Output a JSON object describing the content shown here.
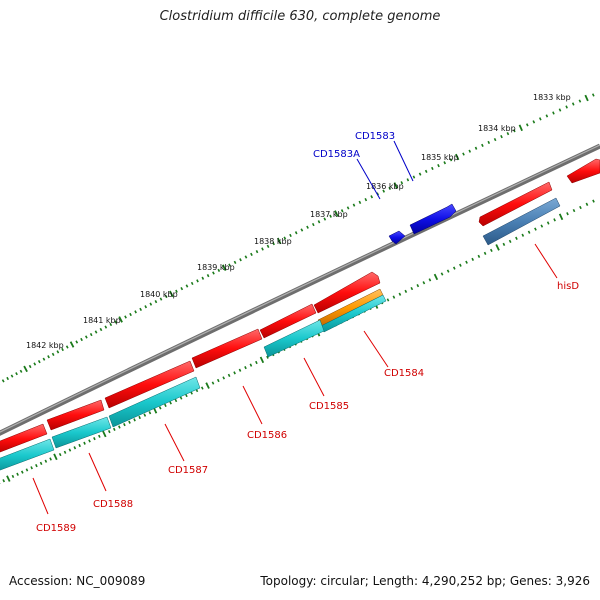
{
  "title": "Clostridium difficile 630, complete genome",
  "footer": {
    "accession": "Accession: NC_009089",
    "summary": "Topology: circular; Length: 4,290,252 bp; Genes: 3,926"
  },
  "scale": {
    "ticks": [
      "1833 kbp",
      "1834 kbp",
      "1835 kbp",
      "1836 kbp",
      "1837 kbp",
      "1838 kbp",
      "1839 kbp",
      "1840 kbp",
      "1841 kbp",
      "1842 kbp"
    ]
  },
  "genes": [
    {
      "name": "CD1583",
      "strand": "forward",
      "color": "#1010e0"
    },
    {
      "name": "CD1583A",
      "strand": "forward",
      "color": "#1010e0"
    },
    {
      "name": "hisD",
      "strand": "reverse",
      "color": "#e00000"
    },
    {
      "name": "CD1584",
      "strand": "reverse",
      "color": "#e00000"
    },
    {
      "name": "CD1585",
      "strand": "reverse",
      "color": "#e00000"
    },
    {
      "name": "CD1586",
      "strand": "reverse",
      "color": "#e00000"
    },
    {
      "name": "CD1587",
      "strand": "reverse",
      "color": "#e00000"
    },
    {
      "name": "CD1588",
      "strand": "reverse",
      "color": "#e00000"
    },
    {
      "name": "CD1589",
      "strand": "reverse",
      "color": "#e00000"
    }
  ],
  "colors": {
    "backbone": "#7a7a7a",
    "cds_reverse": "#ff1a1a",
    "cds_forward": "#1010e0",
    "feature_cyan": "#1ac8cc",
    "feature_orange": "#ff9a00",
    "feature_steel": "#4a80b4",
    "ticks": "#1a7a1a"
  }
}
